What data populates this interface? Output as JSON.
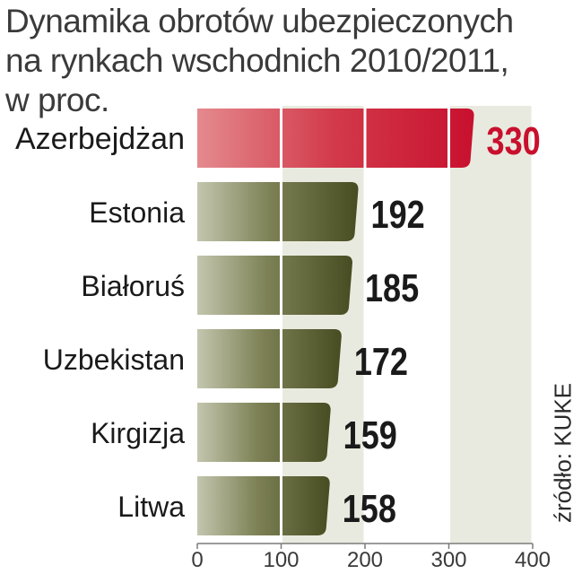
{
  "title_lines": [
    "Dynamika obrotów ubezpieczonych",
    "na rynkach wschodnich 2010/2011,",
    "w proc."
  ],
  "source": "źródło: KUKE",
  "colors": {
    "highlight_bar": "#c8102e",
    "highlight_label": "#c8102e",
    "bar": "#55592f",
    "band": "#e9eadf",
    "grid": "#ffffff",
    "axis": "#7a7a7a"
  },
  "chart_data": {
    "type": "bar",
    "orientation": "horizontal",
    "categories": [
      "Azerbejdżan",
      "Estonia",
      "Białoruś",
      "Uzbekistan",
      "Kirgizja",
      "Litwa"
    ],
    "values": [
      330,
      192,
      185,
      172,
      159,
      158
    ],
    "highlight": "Azerbejdżan",
    "xlim": [
      0,
      400
    ],
    "xticks": [
      0,
      100,
      200,
      300,
      400
    ],
    "grid": true,
    "title": "Dynamika obrotów ubezpieczonych na rynkach wschodnich 2010/2011, w proc."
  }
}
